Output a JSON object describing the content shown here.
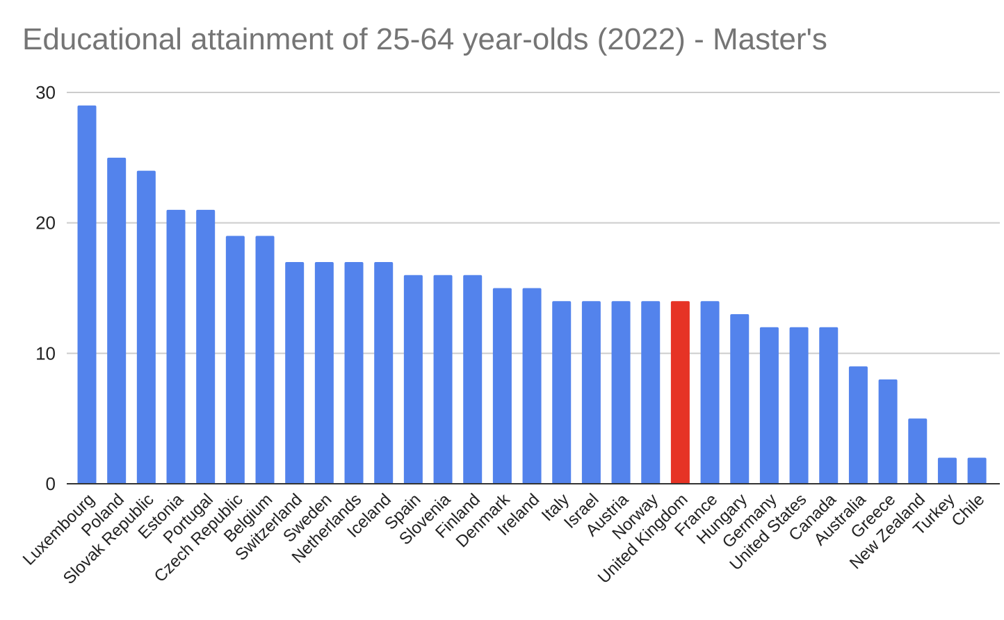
{
  "chart_data": {
    "type": "bar",
    "title": "Educational attainment of 25-64 year-olds (2022) - Master's",
    "xlabel": "",
    "ylabel": "",
    "ylim": [
      0,
      30
    ],
    "yticks": [
      0,
      10,
      20,
      30
    ],
    "grid": true,
    "legend": "none",
    "colors": {
      "default": "#5383ec",
      "highlight": "#e63325",
      "gridline": "#cccccc",
      "axis": "#333333",
      "title": "#757575",
      "tick_label": "#222222"
    },
    "highlight_category": "United Kingdom",
    "categories": [
      "Luxembourg",
      "Poland",
      "Slovak Republic",
      "Estonia",
      "Portugal",
      "Czech Republic",
      "Belgium",
      "Switzerland",
      "Sweden",
      "Netherlands",
      "Iceland",
      "Spain",
      "Slovenia",
      "Finland",
      "Denmark",
      "Ireland",
      "Italy",
      "Israel",
      "Austria",
      "Norway",
      "United Kingdom",
      "France",
      "Hungary",
      "Germany",
      "United States",
      "Canada",
      "Australia",
      "Greece",
      "New Zealand",
      "Turkey",
      "Chile"
    ],
    "values": [
      29,
      25,
      24,
      21,
      21,
      19,
      19,
      17,
      17,
      17,
      17,
      16,
      16,
      16,
      15,
      15,
      14,
      14,
      14,
      14,
      14,
      14,
      13,
      12,
      12,
      12,
      9,
      8,
      5,
      2,
      2
    ]
  }
}
